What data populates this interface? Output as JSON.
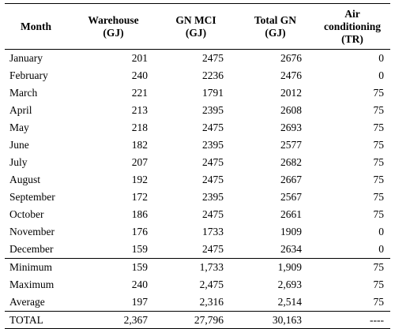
{
  "headers": {
    "month": "Month",
    "warehouse": [
      "Warehouse",
      "(GJ)"
    ],
    "gn_mci": [
      "GN MCI",
      "(GJ)"
    ],
    "total_gn": [
      "Total GN",
      "(GJ)"
    ],
    "air_conditioning": [
      "Air",
      "conditioning",
      "(TR)"
    ]
  },
  "monthly_rows": [
    {
      "month": "January",
      "warehouse": "201",
      "gn_mci": "2475",
      "total_gn": "2676",
      "ac": "0"
    },
    {
      "month": "February",
      "warehouse": "240",
      "gn_mci": "2236",
      "total_gn": "2476",
      "ac": "0"
    },
    {
      "month": "March",
      "warehouse": "221",
      "gn_mci": "1791",
      "total_gn": "2012",
      "ac": "75"
    },
    {
      "month": "April",
      "warehouse": "213",
      "gn_mci": "2395",
      "total_gn": "2608",
      "ac": "75"
    },
    {
      "month": "May",
      "warehouse": "218",
      "gn_mci": "2475",
      "total_gn": "2693",
      "ac": "75"
    },
    {
      "month": "June",
      "warehouse": "182",
      "gn_mci": "2395",
      "total_gn": "2577",
      "ac": "75"
    },
    {
      "month": "July",
      "warehouse": "207",
      "gn_mci": "2475",
      "total_gn": "2682",
      "ac": "75"
    },
    {
      "month": "August",
      "warehouse": "192",
      "gn_mci": "2475",
      "total_gn": "2667",
      "ac": "75"
    },
    {
      "month": "September",
      "warehouse": "172",
      "gn_mci": "2395",
      "total_gn": "2567",
      "ac": "75"
    },
    {
      "month": "October",
      "warehouse": "186",
      "gn_mci": "2475",
      "total_gn": "2661",
      "ac": "75"
    },
    {
      "month": "November",
      "warehouse": "176",
      "gn_mci": "1733",
      "total_gn": "1909",
      "ac": "0"
    },
    {
      "month": "December",
      "warehouse": "159",
      "gn_mci": "2475",
      "total_gn": "2634",
      "ac": "0"
    }
  ],
  "stat_rows": [
    {
      "month": "Minimum",
      "warehouse": "159",
      "gn_mci": "1,733",
      "total_gn": "1,909",
      "ac": "75"
    },
    {
      "month": "Maximum",
      "warehouse": "240",
      "gn_mci": "2,475",
      "total_gn": "2,693",
      "ac": "75"
    },
    {
      "month": "Average",
      "warehouse": "197",
      "gn_mci": "2,316",
      "total_gn": "2,514",
      "ac": "75"
    }
  ],
  "total_row": {
    "month": "TOTAL",
    "warehouse": "2,367",
    "gn_mci": "27,796",
    "total_gn": "30,163",
    "ac": "----"
  }
}
